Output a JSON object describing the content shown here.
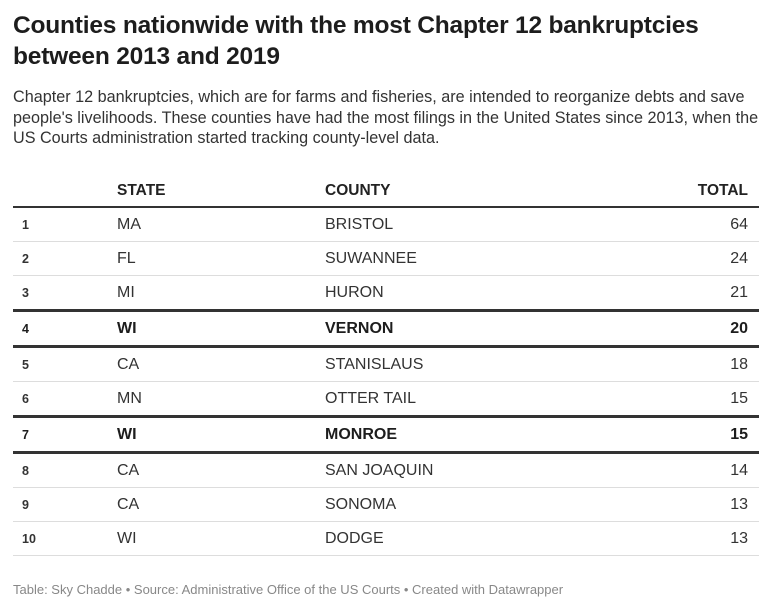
{
  "header": {
    "title": "Counties nationwide with the most Chapter 12 bankruptcies between 2013 and 2019",
    "description": "Chapter 12 bankruptcies, which are for farms and fisheries, are intended to reorganize debts and save people's livelihoods. These counties have had the most filings in the United States since 2013, when the US Courts administration started tracking county-level data."
  },
  "table": {
    "columns": [
      "STATE",
      "COUNTY",
      "TOTAL"
    ],
    "rows": [
      [
        1,
        "MA",
        "BRISTOL",
        64
      ],
      [
        2,
        "FL",
        "SUWANNEE",
        24
      ],
      [
        3,
        "MI",
        "HURON",
        21
      ],
      [
        4,
        "WI",
        "VERNON",
        20
      ],
      [
        5,
        "CA",
        "STANISLAUS",
        18
      ],
      [
        6,
        "MN",
        "OTTER TAIL",
        15
      ],
      [
        7,
        "WI",
        "MONROE",
        15
      ],
      [
        8,
        "CA",
        "SAN JOAQUIN",
        14
      ],
      [
        9,
        "CA",
        "SONOMA",
        13
      ],
      [
        10,
        "WI",
        "DODGE",
        13
      ]
    ]
  },
  "footer": "Table: Sky Chadde • Source: Administrative Office of the US Courts • Created with Datawrapper"
}
